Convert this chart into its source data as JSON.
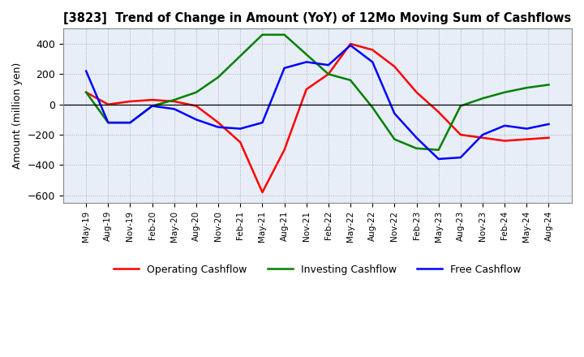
{
  "title": "[3823]  Trend of Change in Amount (YoY) of 12Mo Moving Sum of Cashflows",
  "ylabel": "Amount (million yen)",
  "ylim": [
    -650,
    500
  ],
  "yticks": [
    -600,
    -400,
    -200,
    0,
    200,
    400
  ],
  "x_labels": [
    "May-19",
    "Aug-19",
    "Nov-19",
    "Feb-20",
    "May-20",
    "Aug-20",
    "Nov-20",
    "Feb-21",
    "May-21",
    "Aug-21",
    "Nov-21",
    "Feb-22",
    "May-22",
    "Aug-22",
    "Nov-22",
    "Feb-23",
    "May-23",
    "Aug-23",
    "Nov-23",
    "Feb-24",
    "May-24",
    "Aug-24"
  ],
  "operating": [
    80,
    0,
    20,
    30,
    20,
    -10,
    -120,
    -250,
    -580,
    -300,
    100,
    200,
    400,
    360,
    250,
    80,
    -50,
    -200,
    -220,
    -240,
    -230,
    -220
  ],
  "investing": [
    80,
    -120,
    -120,
    -10,
    30,
    80,
    180,
    320,
    460,
    460,
    330,
    200,
    160,
    -20,
    -230,
    -290,
    -300,
    -10,
    40,
    80,
    110,
    130
  ],
  "free": [
    220,
    -120,
    -120,
    -10,
    -30,
    -100,
    -150,
    -160,
    -120,
    240,
    280,
    260,
    390,
    280,
    -60,
    -220,
    -360,
    -350,
    -200,
    -140,
    -160,
    -130
  ],
  "operating_color": "#ff0000",
  "investing_color": "#008000",
  "free_color": "#0000ff",
  "bg_color": "#ffffff",
  "plot_bg_color": "#e8eef8",
  "grid_color": "#aaaaaa"
}
